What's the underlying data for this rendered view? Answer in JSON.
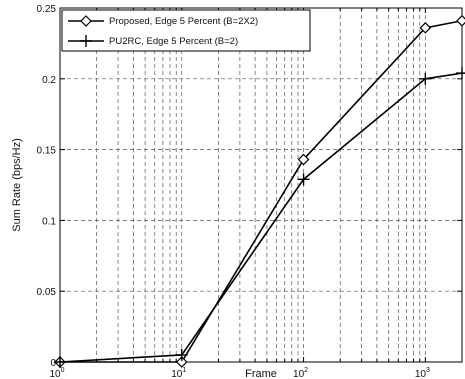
{
  "chart_data": {
    "type": "line",
    "title": "",
    "xlabel": "Frame",
    "ylabel": "Sum Rate (bps/Hz)",
    "x_scale": "log",
    "xlim": [
      1,
      2000
    ],
    "ylim": [
      0,
      0.25
    ],
    "grid": true,
    "legend_position": "top-left",
    "x_ticks": [
      {
        "base": "10",
        "exp": "0",
        "value": 1
      },
      {
        "base": "10",
        "exp": "1",
        "value": 10
      },
      {
        "base": "10",
        "exp": "2",
        "value": 100
      },
      {
        "base": "10",
        "exp": "3",
        "value": 1000
      }
    ],
    "y_ticks": [
      "0",
      "0.05",
      "0.1",
      "0.15",
      "0.2",
      "0.25"
    ],
    "series": [
      {
        "name": "Proposed, Edge 5 Percent (B=2X2)",
        "marker": "diamond",
        "color": "#000000",
        "x": [
          1,
          10,
          100,
          1000,
          2000
        ],
        "y": [
          0,
          0,
          0.143,
          0.236,
          0.241
        ]
      },
      {
        "name": "PU2RC, Edge 5 Percent (B=2)",
        "marker": "plus",
        "color": "#000000",
        "x": [
          1,
          10,
          100,
          1000,
          2000
        ],
        "y": [
          0,
          0.005,
          0.129,
          0.2,
          0.204
        ]
      }
    ]
  }
}
